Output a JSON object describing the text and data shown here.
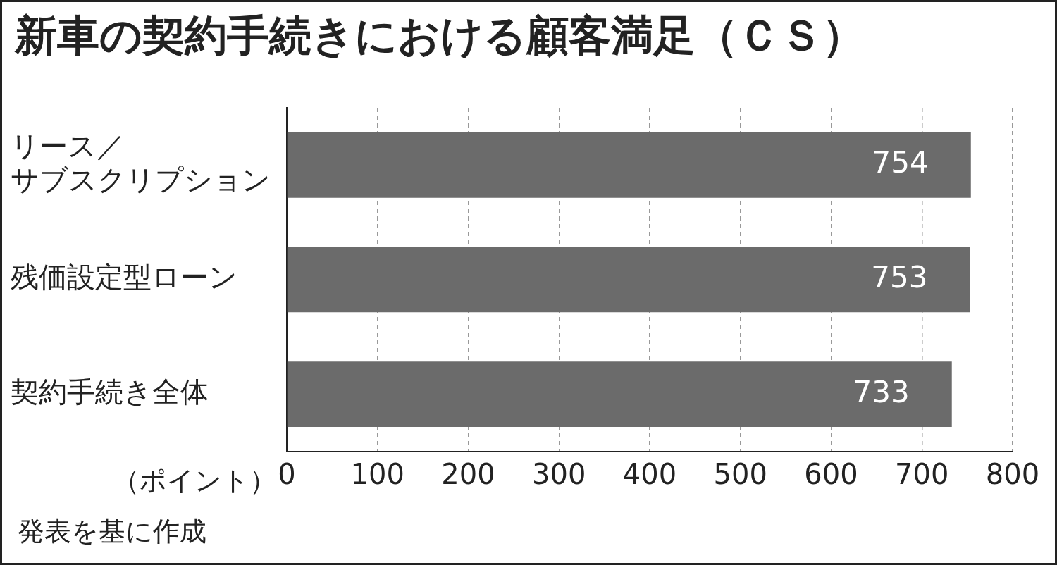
{
  "chart_data": {
    "type": "bar",
    "orientation": "horizontal",
    "title": "新車の契約手続きにおける顧客満足（ＣＳ）",
    "xlabel": "（ポイント）",
    "categories": [
      "リース／サブスクリプション",
      "残価設定型ローン",
      "契約手続き全体"
    ],
    "values": [
      754,
      753,
      733
    ],
    "color": "#6b6b6b",
    "xlim": [
      0,
      800
    ],
    "xticks": [
      0,
      100,
      200,
      300,
      400,
      500,
      600,
      700,
      800
    ],
    "grid": "x",
    "data_labels": true,
    "annotations": [
      "発表を基に作成"
    ]
  }
}
